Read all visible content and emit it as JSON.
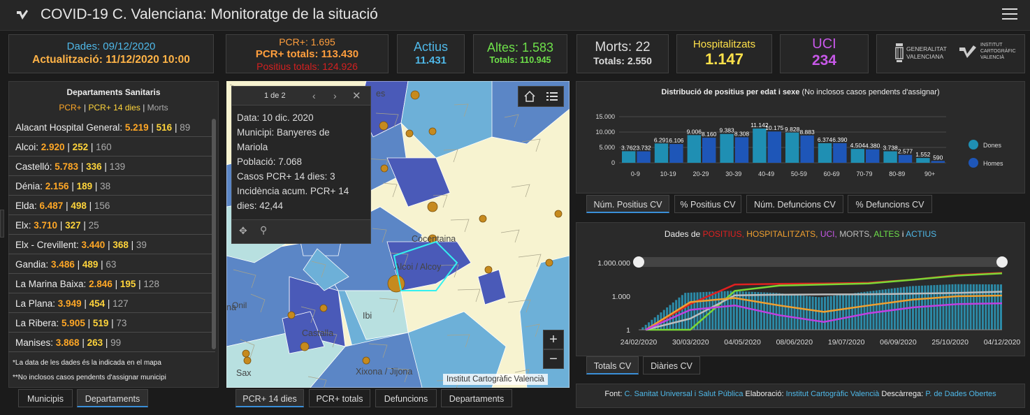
{
  "header": {
    "title": "COVID-19 C. Valenciana: Monitoratge de la situació",
    "menu_icon": "hamburger-menu-icon",
    "logo_icon": "pen-logo-icon"
  },
  "cards": {
    "dates": {
      "dades": "Dades: 09/12/2020",
      "actualitzacio": "Actualització: 11/12/2020 10:00"
    },
    "pcr": {
      "pcr": "PCR+: 1.695",
      "pcr_totals": "PCR+ totals: 113.430",
      "positius_totals": "Positius totals: 124.926"
    },
    "actius": {
      "label": "Actius",
      "value": "11.431"
    },
    "altes": {
      "label": "Altes: 1.583",
      "totals": "Totals: 110.945"
    },
    "morts": {
      "label": "Morts: 22",
      "totals": "Totals: 2.550"
    },
    "hosp": {
      "label": "Hospitalitzats",
      "value": "1.147"
    },
    "uci": {
      "label": "UCI",
      "value": "234"
    },
    "logos": {
      "gva_line1": "GENERALITAT",
      "gva_line2": "VALENCIANA",
      "icv_line1": "INSTITUT",
      "icv_line2": "CARTOGRÀFIC",
      "icv_line3": "VALENCIÀ"
    }
  },
  "departments": {
    "title": "Departaments Sanitaris",
    "legend_pcr": "PCR+",
    "legend_pcr14": "PCR+ 14 dies",
    "legend_morts": "Morts",
    "rows": [
      {
        "name": "Alacant Hospital General:",
        "pcr": "5.219",
        "pcr14": "516",
        "morts": "89"
      },
      {
        "name": "Alcoi:",
        "pcr": "2.920",
        "pcr14": "252",
        "morts": "160"
      },
      {
        "name": "Castelló:",
        "pcr": "5.783",
        "pcr14": "336",
        "morts": "139"
      },
      {
        "name": "Dénia:",
        "pcr": "2.156",
        "pcr14": "189",
        "morts": "38"
      },
      {
        "name": "Elda:",
        "pcr": "6.487",
        "pcr14": "498",
        "morts": "156"
      },
      {
        "name": "Elx:",
        "pcr": "3.710",
        "pcr14": "327",
        "morts": "25"
      },
      {
        "name": "Elx - Crevillent:",
        "pcr": "3.440",
        "pcr14": "368",
        "morts": "39"
      },
      {
        "name": "Gandia:",
        "pcr": "3.486",
        "pcr14": "489",
        "morts": "63"
      },
      {
        "name": "La Marina Baixa:",
        "pcr": "2.846",
        "pcr14": "195",
        "morts": "128"
      },
      {
        "name": "La Plana:",
        "pcr": "3.949",
        "pcr14": "454",
        "morts": "127"
      },
      {
        "name": "La Ribera:",
        "pcr": "5.905",
        "pcr14": "519",
        "morts": "73"
      },
      {
        "name": "Manises:",
        "pcr": "3.868",
        "pcr14": "263",
        "morts": "99"
      }
    ],
    "note1": "*La data de les dades és la indicada en el mapa",
    "note2": "**No inclosos casos pendents d'assignar municipi",
    "tabs": [
      "Municipis",
      "Departaments"
    ],
    "active_tab": "Departaments"
  },
  "map": {
    "popup": {
      "pager": "1 de 2",
      "lines": [
        "Data: 10 dic. 2020",
        "Municipi: Banyeres de",
        "Mariola",
        "Població: 7.068",
        "Casos PCR+ 14 dies: 3",
        "Incidència acum. PCR+ 14",
        "dies: 42,44"
      ]
    },
    "place_labels": [
      "Cocentaina",
      "Alcoi / Alcoy",
      "Onil",
      "Castalla",
      "Ibi",
      "Xixona / Jijona",
      "Sax",
      "na",
      "es"
    ],
    "attribution": "Institut Cartogràfic Valencià",
    "zoom_in": "+",
    "zoom_out": "−",
    "tabs": [
      "PCR+ 14 dies",
      "PCR+ totals",
      "Defuncions",
      "Departaments"
    ],
    "active_tab": "PCR+ 14 dies",
    "colors": {
      "dark": "#4a5ab8",
      "mid": "#5b86c6",
      "light": "#6db0d8",
      "pale": "#b8e0e0",
      "bg": "#f7f3d0",
      "dot": "#c68a1e"
    }
  },
  "bar_chart": {
    "title": "Distribució de positius per edat i sexe",
    "subtitle": "(No inclosos casos pendents d'assignar)",
    "tabs": [
      "Núm. Positius CV",
      "% Positius CV",
      "Núm. Defuncions CV",
      "% Defuncions CV"
    ],
    "active_tab": "Núm. Positius CV"
  },
  "line_chart": {
    "title_prefix": "Dades de",
    "title_positius": "POSITIUS,",
    "title_hosp": "HOSPITALITZATS,",
    "title_uci": "UCI,",
    "title_morts": "MORTS,",
    "title_altes": "ALTES",
    "title_i": "i",
    "title_actius": "ACTIUS",
    "tabs": [
      "Totals CV",
      "Diàries CV"
    ],
    "active_tab": "Totals CV"
  },
  "footer": {
    "font_label": "Font:",
    "font_value": "C. Sanitat Universal i Salut Pública",
    "elab_label": "Elaboració:",
    "elab_value": "Institut Cartogràfic Valencià",
    "desc_label": "Descàrrega:",
    "desc_value": "P. de Dades Obertes"
  },
  "chart_data": [
    {
      "type": "bar",
      "title": "Distribució de positius per edat i sexe",
      "categories": [
        "0-9",
        "10-19",
        "20-29",
        "30-39",
        "40-49",
        "50-59",
        "60-69",
        "70-79",
        "80-89",
        "90+"
      ],
      "series": [
        {
          "name": "Dones",
          "color": "#1f8fb3",
          "values": [
            3762,
            6291,
            9006,
            9383,
            11142,
            9828,
            6374,
            4504,
            3738,
            1552
          ]
        },
        {
          "name": "Homes",
          "color": "#1e56b8",
          "values": [
            3732,
            6106,
            8160,
            8308,
            10175,
            8883,
            6390,
            4380,
            2577,
            590
          ]
        }
      ],
      "data_labels": {
        "Dones": [
          "3.762",
          "6.291",
          "9.006",
          "9.383",
          "11.142",
          "9.828",
          "6.374",
          "4.504",
          "3.738",
          "1.552"
        ],
        "Homes": [
          "3.732",
          "6.106",
          "8.160",
          "8.308",
          "10.175",
          "8.883",
          "6.390",
          "4.380",
          "2.577",
          "590"
        ]
      },
      "yticks": [
        "15.000",
        "10.000",
        "5.000",
        "0"
      ],
      "ylim": [
        0,
        15000
      ],
      "legend": "right"
    },
    {
      "type": "line",
      "title": "Dades de POSITIUS, HOSPITALITZATS, UCI, MORTS, ALTES i ACTIUS",
      "x_ticks": [
        "24/02/2020",
        "30/03/2020",
        "04/05/2020",
        "08/06/2020",
        "19/07/2020",
        "06/09/2020",
        "25/10/2020",
        "04/12/2020"
      ],
      "y_ticks": [
        "1.000.000",
        "1.000",
        "1"
      ],
      "y_scale": "log",
      "series": [
        {
          "name": "POSITIUS",
          "color": "#e02020",
          "values": [
            1,
            200,
            11000,
            13000,
            14000,
            16000,
            30000,
            80000,
            124926
          ]
        },
        {
          "name": "ALTES",
          "color": "#7bd636",
          "values": [
            1,
            1,
            3000,
            9000,
            11000,
            14000,
            30000,
            70000,
            110945
          ]
        },
        {
          "name": "MORTS",
          "color": "#bdbdbd",
          "values": [
            1,
            10,
            1200,
            1400,
            1450,
            1500,
            1700,
            2000,
            2550
          ]
        },
        {
          "name": "HOSPITALITZATS",
          "color": "#f0a030",
          "values": [
            1,
            300,
            700,
            150,
            40,
            150,
            500,
            1000,
            1147
          ]
        },
        {
          "name": "UCI",
          "color": "#c040e0",
          "values": [
            1,
            60,
            150,
            20,
            5,
            30,
            100,
            200,
            234
          ]
        },
        {
          "name": "ACTIUS",
          "color": "#2d9bbd",
          "values": [
            1,
            2000,
            3000,
            2000,
            800,
            2500,
            8000,
            12000,
            11431
          ]
        }
      ]
    }
  ]
}
